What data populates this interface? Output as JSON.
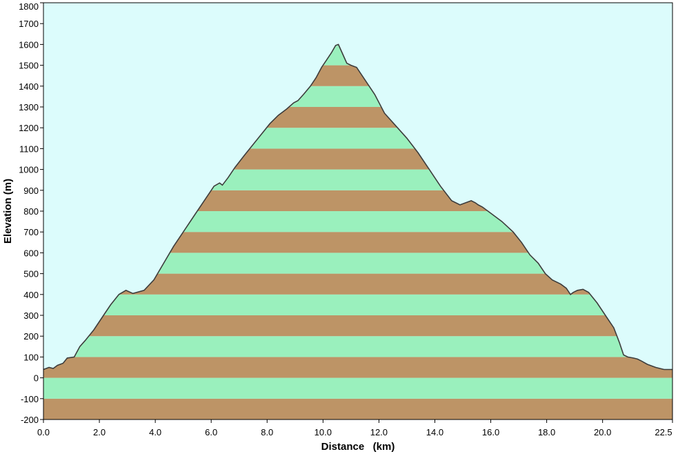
{
  "chart_data": {
    "type": "area",
    "title": "",
    "xlabel": "Distance   (km)",
    "ylabel": "Elevation (m)",
    "xlim": [
      0,
      22.5
    ],
    "ylim": [
      -200,
      1800
    ],
    "x_ticks": [
      "0.0",
      "2.0",
      "4.0",
      "6.0",
      "8.0",
      "10.0",
      "12.0",
      "14.0",
      "16.0",
      "18.0",
      "20.0",
      "22.5"
    ],
    "y_ticks": [
      "1800",
      "1700",
      "1600",
      "1500",
      "1400",
      "1300",
      "1200",
      "1100",
      "1000",
      "900",
      "800",
      "700",
      "600",
      "500",
      "400",
      "300",
      "200",
      "100",
      "0",
      "-100",
      "-200"
    ],
    "band_step": 100,
    "band_colors": [
      "#bd9466",
      "#9af0bd"
    ],
    "background_color": "#dcfcfc",
    "line_color": "#3c3c3c",
    "grid": false,
    "series": [
      {
        "x": [
          0.0,
          0.2,
          0.35,
          0.5,
          0.7,
          0.85,
          1.1,
          1.3,
          1.5,
          1.8,
          2.1,
          2.4,
          2.7,
          2.95,
          3.2,
          3.6,
          3.95,
          4.3,
          4.65,
          5.0,
          5.4,
          5.8,
          6.1,
          6.3,
          6.4,
          6.6,
          6.85,
          7.2,
          7.5,
          7.8,
          8.1,
          8.4,
          8.7,
          8.95,
          9.1,
          9.3,
          9.55,
          9.75,
          9.95,
          10.1,
          10.3,
          10.45,
          10.55,
          10.65,
          10.85,
          11.0,
          11.2,
          11.5,
          11.85,
          12.2,
          12.6,
          13.0,
          13.4,
          13.8,
          14.2,
          14.6,
          14.9,
          15.1,
          15.3,
          15.45,
          15.55,
          15.7,
          16.0,
          16.4,
          16.8,
          17.1,
          17.4,
          17.7,
          17.95,
          18.2,
          18.5,
          18.7,
          18.85,
          18.95,
          19.1,
          19.3,
          19.5,
          19.8,
          20.1,
          20.4,
          20.6,
          20.75,
          20.9,
          21.1,
          21.25,
          21.4,
          21.6,
          21.9,
          22.2,
          22.5
        ],
        "y": [
          40,
          50,
          45,
          60,
          70,
          95,
          100,
          150,
          180,
          230,
          290,
          350,
          400,
          420,
          405,
          420,
          470,
          550,
          630,
          700,
          780,
          860,
          920,
          935,
          925,
          960,
          1010,
          1070,
          1120,
          1170,
          1220,
          1260,
          1290,
          1320,
          1330,
          1360,
          1400,
          1440,
          1490,
          1520,
          1560,
          1595,
          1600,
          1570,
          1510,
          1500,
          1490,
          1430,
          1360,
          1270,
          1210,
          1150,
          1080,
          1000,
          920,
          850,
          830,
          840,
          850,
          840,
          830,
          820,
          790,
          750,
          700,
          650,
          590,
          550,
          500,
          470,
          450,
          430,
          400,
          410,
          420,
          425,
          410,
          360,
          300,
          240,
          170,
          110,
          100,
          95,
          90,
          80,
          65,
          50,
          40,
          40
        ]
      }
    ]
  }
}
